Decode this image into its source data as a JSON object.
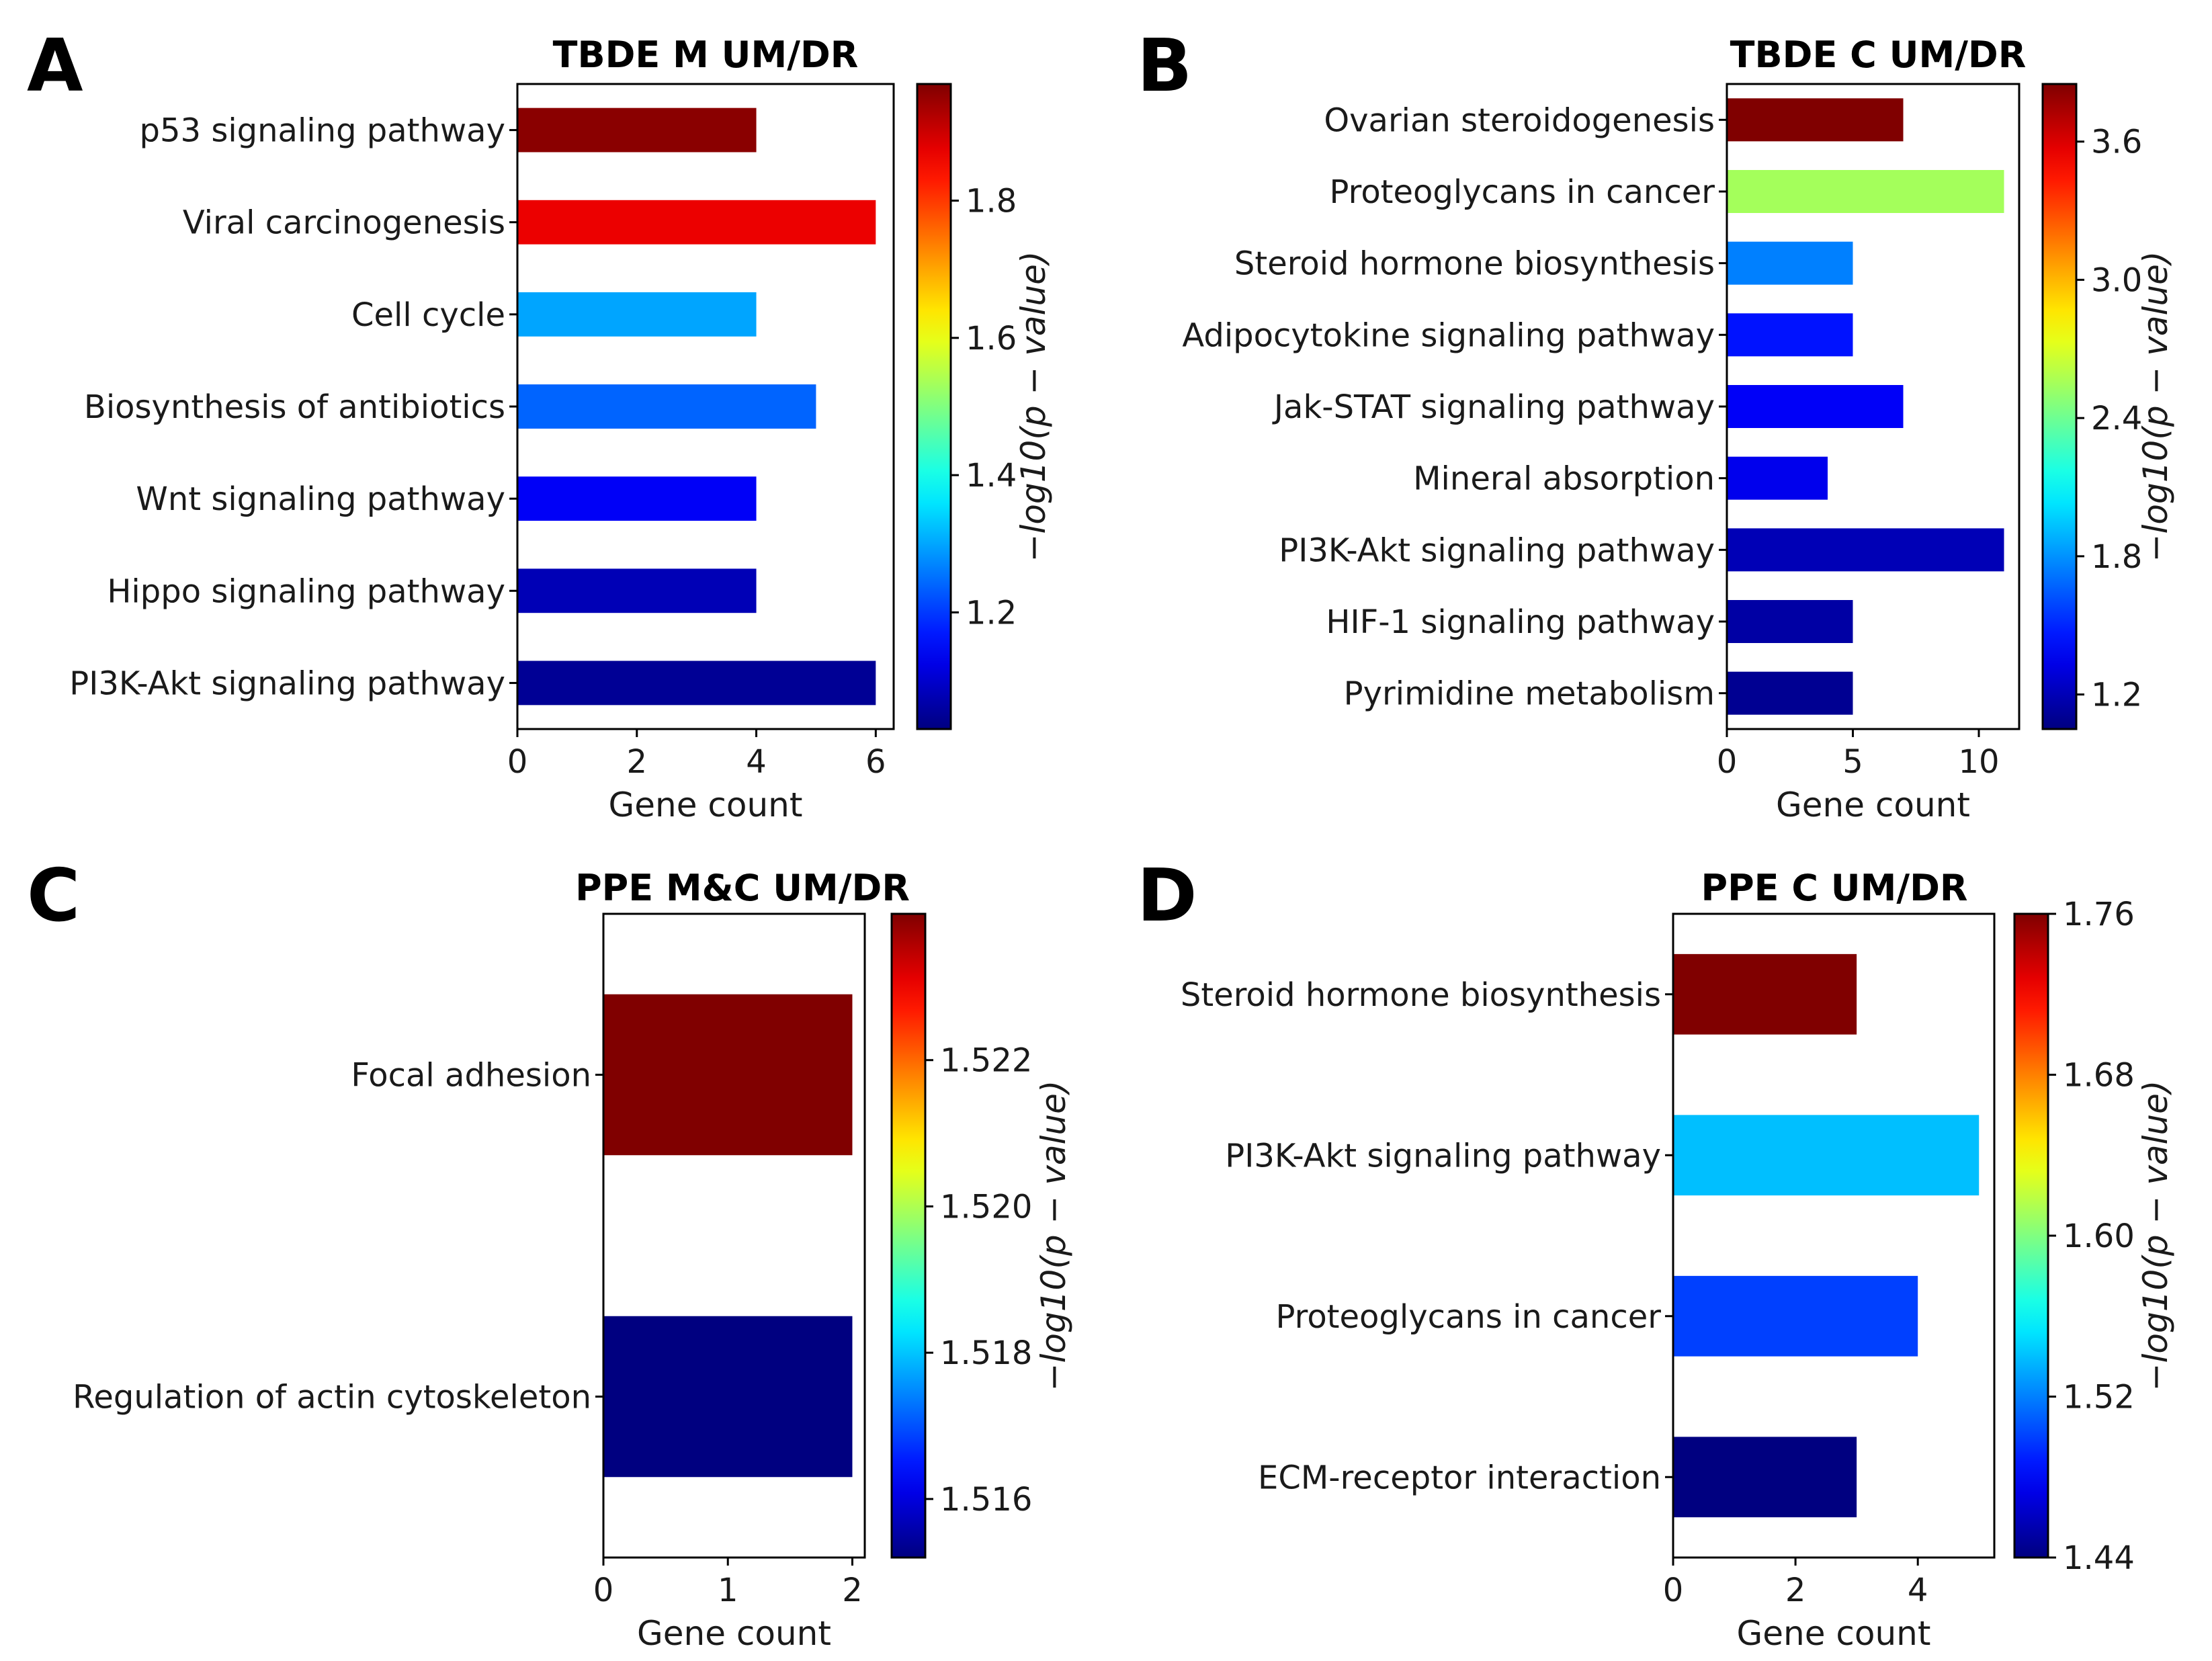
{
  "chart_data": [
    {
      "type": "bar",
      "orientation": "horizontal",
      "panel": "A",
      "title": "TBDE M UM/DR",
      "xlabel": "Gene count",
      "xlim": [
        0,
        6.3
      ],
      "xticks": [
        0,
        2,
        4,
        6
      ],
      "categories": [
        "p53 signaling pathway",
        "Viral carcinogenesis",
        "Cell cycle",
        "Biosynthesis of antibiotics",
        "Wnt signaling pathway",
        "Hippo signaling pathway",
        "PI3K-Akt signaling pathway"
      ],
      "values": [
        4,
        6,
        4,
        5,
        4,
        4,
        6
      ],
      "color_values": [
        1.96,
        1.87,
        1.3,
        1.24,
        1.14,
        1.08,
        1.05
      ],
      "colorbar": {
        "label": "−log10(p − value)",
        "range": [
          1.03,
          1.97
        ],
        "ticks": [
          1.2,
          1.4,
          1.6,
          1.8
        ],
        "tick_labels": [
          "1.2",
          "1.4",
          "1.6",
          "1.8"
        ]
      }
    },
    {
      "type": "bar",
      "orientation": "horizontal",
      "panel": "B",
      "title": "TBDE C UM/DR",
      "xlabel": "Gene count",
      "xlim": [
        0,
        11.6
      ],
      "xticks": [
        0,
        5,
        10
      ],
      "categories": [
        "Ovarian steroidogenesis",
        "Proteoglycans in cancer",
        "Steroid hormone biosynthesis",
        "Adipocytokine signaling pathway",
        "Jak-STAT signaling pathway",
        "Mineral absorption",
        "PI3K-Akt signaling pathway",
        "HIF-1 signaling pathway",
        "Pyrimidine metabolism"
      ],
      "values": [
        7,
        11,
        5,
        5,
        7,
        4,
        11,
        5,
        5
      ],
      "color_values": [
        3.85,
        2.55,
        1.75,
        1.45,
        1.38,
        1.35,
        1.2,
        1.15,
        1.1
      ],
      "colorbar": {
        "label": "−log10(p − value)",
        "range": [
          1.05,
          3.85
        ],
        "ticks": [
          1.2,
          1.8,
          2.4,
          3.0,
          3.6
        ],
        "tick_labels": [
          "1.2",
          "1.8",
          "2.4",
          "3.0",
          "3.6"
        ]
      }
    },
    {
      "type": "bar",
      "orientation": "horizontal",
      "panel": "C",
      "title": "PPE M&C UM/DR",
      "xlabel": "Gene count",
      "xlim": [
        0,
        2.1
      ],
      "xticks": [
        0,
        1,
        2
      ],
      "categories": [
        "Focal adhesion",
        "Regulation of actin cytoskeleton"
      ],
      "values": [
        2,
        2
      ],
      "color_values": [
        1.524,
        1.5152
      ],
      "colorbar": {
        "label": "−log10(p − value)",
        "range": [
          1.5152,
          1.524
        ],
        "ticks": [
          1.516,
          1.518,
          1.52,
          1.522
        ],
        "tick_labels": [
          "1.516",
          "1.518",
          "1.520",
          "1.522"
        ]
      }
    },
    {
      "type": "bar",
      "orientation": "horizontal",
      "panel": "D",
      "title": "PPE C UM/DR",
      "xlabel": "Gene count",
      "xlim": [
        0,
        5.25
      ],
      "xticks": [
        0,
        2,
        4
      ],
      "categories": [
        "Steroid hormone biosynthesis",
        "PI3K-Akt signaling pathway",
        "Proteoglycans in cancer",
        "ECM-receptor interaction"
      ],
      "values": [
        3,
        5,
        4,
        3
      ],
      "color_values": [
        1.76,
        1.54,
        1.5,
        1.44
      ],
      "colorbar": {
        "label": "−log10(p − value)",
        "range": [
          1.44,
          1.76
        ],
        "ticks": [
          1.44,
          1.52,
          1.6,
          1.68,
          1.76
        ],
        "tick_labels": [
          "1.44",
          "1.52",
          "1.60",
          "1.68",
          "1.76"
        ]
      }
    }
  ]
}
